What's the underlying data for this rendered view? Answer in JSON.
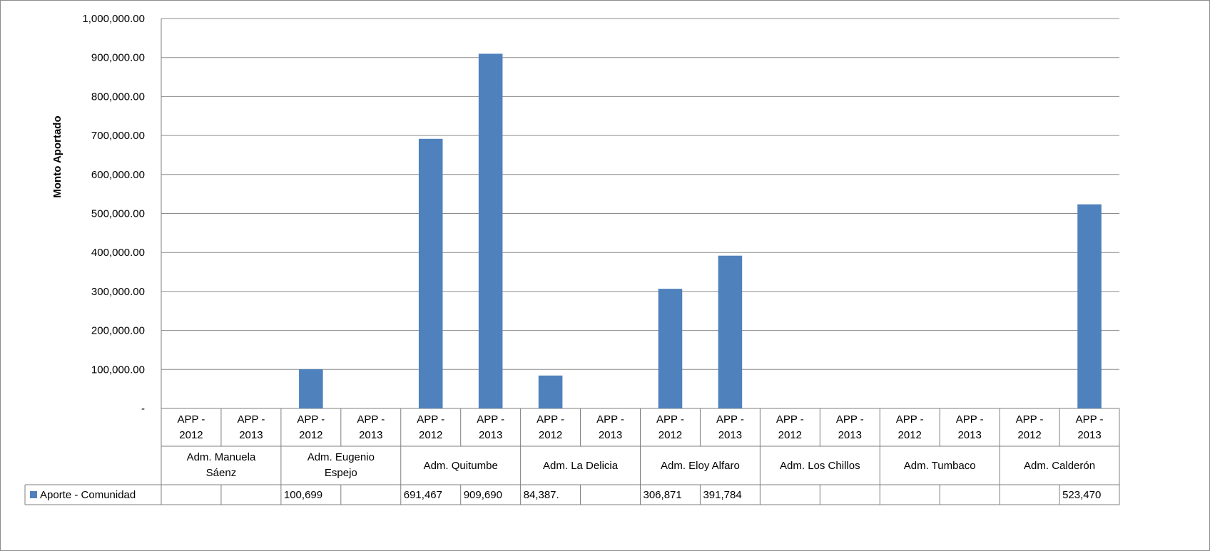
{
  "chart_data": {
    "type": "bar",
    "ylabel": "Monto Aportado",
    "ylim": [
      0,
      1000000
    ],
    "yticks": [
      "-",
      "100,000.00",
      "200,000.00",
      "300,000.00",
      "400,000.00",
      "500,000.00",
      "600,000.00",
      "700,000.00",
      "800,000.00",
      "900,000.00",
      "1,000,000.00"
    ],
    "grid": true,
    "legend_placement": "data-table",
    "bar_color": "#4F81BD",
    "groups": [
      {
        "name": "Adm. Manuela\nSáenz",
        "categories": [
          "APP -\n2012",
          "APP -\n2013"
        ]
      },
      {
        "name": "Adm. Eugenio\nEspejo",
        "categories": [
          "APP -\n2012",
          "APP -\n2013"
        ]
      },
      {
        "name": "Adm. Quitumbe",
        "categories": [
          "APP -\n2012",
          "APP -\n2013"
        ]
      },
      {
        "name": "Adm. La Delicia",
        "categories": [
          "APP -\n2012",
          "APP -\n2013"
        ]
      },
      {
        "name": "Adm. Eloy Alfaro",
        "categories": [
          "APP -\n2012",
          "APP -\n2013"
        ]
      },
      {
        "name": "Adm. Los Chillos",
        "categories": [
          "APP -\n2012",
          "APP -\n2013"
        ]
      },
      {
        "name": "Adm. Tumbaco",
        "categories": [
          "APP -\n2012",
          "APP -\n2013"
        ]
      },
      {
        "name": "Adm. Calderón",
        "categories": [
          "APP -\n2012",
          "APP -\n2013"
        ]
      }
    ],
    "series": [
      {
        "name": "Aporte - Comunidad",
        "values": [
          null,
          null,
          100699,
          null,
          691467,
          909690,
          84387,
          null,
          306871,
          391784,
          null,
          null,
          null,
          null,
          null,
          523470
        ],
        "labels": [
          "",
          "",
          "100,699",
          "",
          "691,467",
          "909,690",
          "84,387.",
          "",
          "306,871",
          "391,784",
          "",
          "",
          "",
          "",
          "",
          "523,470"
        ]
      }
    ]
  }
}
